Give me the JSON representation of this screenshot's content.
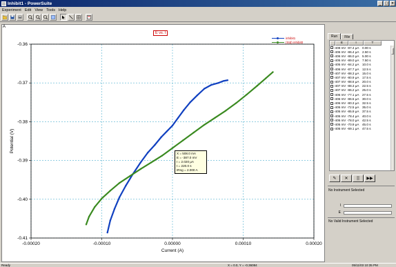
{
  "window": {
    "title": "Inhibit1 - PowerSuite",
    "buttons": [
      "_",
      "□",
      "×"
    ]
  },
  "menu": {
    "items": [
      "Experiment",
      "Edit",
      "View",
      "Tools",
      "Help"
    ]
  },
  "toolbar": {
    "icons": [
      "open-icon",
      "save-icon",
      "print-icon",
      "zoom-in-icon",
      "zoom-out-icon",
      "zoom-box-icon",
      "zoom-fit-icon",
      "cursor-icon",
      "line-icon",
      "grid-icon",
      "properties-icon"
    ]
  },
  "plot": {
    "corner_label": "A",
    "title_badge": "E vs. I",
    "legend": [
      {
        "name": "inhibit1",
        "color": "#1040c0"
      },
      {
        "name": "(Std) inhibit0",
        "color": "#3a8a20"
      }
    ],
    "tooltip": {
      "lines": [
        "X = 508.0 mA",
        "E = -387.0 mV",
        "I = 2.020 μA",
        "t = 220.0 s",
        "IRng = 2.000 A"
      ]
    }
  },
  "chart_data": {
    "type": "line",
    "xlabel": "Current (A)",
    "ylabel": "Potential (V)",
    "xlim": [
      -0.0002,
      0.0002
    ],
    "ylim": [
      -0.41,
      -0.36
    ],
    "xticks": [
      "-0.00020",
      "-0.00010",
      "0.00000",
      "0.00010",
      "0.00020"
    ],
    "yticks": [
      "-0.36",
      "-0.37",
      "-0.38",
      "-0.39",
      "-0.40",
      "-0.41"
    ],
    "xtick_values": [
      -0.0002,
      -0.0001,
      0.0,
      0.0001,
      0.0002
    ],
    "ytick_values": [
      -0.36,
      -0.37,
      -0.38,
      -0.39,
      -0.4,
      -0.41
    ],
    "grid": true,
    "series": [
      {
        "name": "inhibit1",
        "color": "#1040c0",
        "x": [
          -9.2e-05,
          -8.8e-05,
          -8.2e-05,
          -7.5e-05,
          -6.6e-05,
          -5.6e-05,
          -4.5e-05,
          -3.5e-05,
          -2.5e-05,
          -1.6e-05,
          -8e-06,
          0.0,
          8e-06,
          1.6e-05,
          2.5e-05,
          3.5e-05,
          4.5e-05,
          5.5e-05,
          6.5e-05,
          7.2e-05,
          7.8e-05
        ],
        "y": [
          -0.4086,
          -0.4055,
          -0.4025,
          -0.3995,
          -0.3965,
          -0.3935,
          -0.3905,
          -0.388,
          -0.386,
          -0.384,
          -0.3825,
          -0.381,
          -0.379,
          -0.377,
          -0.375,
          -0.3732,
          -0.3715,
          -0.3705,
          -0.37,
          -0.3695,
          -0.3693
        ]
      },
      {
        "name": "(Std) inhibit0",
        "color": "#3a8a20",
        "x": [
          -0.000122,
          -0.000118,
          -0.00011,
          -0.0001,
          -8.8e-05,
          -7.5e-05,
          -6e-05,
          -4.5e-05,
          -3e-05,
          -1.5e-05,
          0.0,
          1.5e-05,
          3e-05,
          4.5e-05,
          6e-05,
          7.5e-05,
          9e-05,
          0.000105,
          0.00012,
          0.000132,
          0.000142
        ],
        "y": [
          -0.4065,
          -0.4045,
          -0.402,
          -0.3998,
          -0.3978,
          -0.3958,
          -0.394,
          -0.3922,
          -0.3905,
          -0.3888,
          -0.3868,
          -0.3848,
          -0.3828,
          -0.3808,
          -0.379,
          -0.3772,
          -0.3752,
          -0.373,
          -0.3707,
          -0.3688,
          -0.3672
        ]
      }
    ]
  },
  "right_panel": {
    "tabs": [
      "Run",
      "File"
    ],
    "columns": [
      "E",
      "I",
      "T"
    ],
    "rows": [
      [
        "-408 mV",
        "-87.4 μA",
        "0.00 s"
      ],
      [
        "-406 mV",
        "-86.4 μA",
        "2.50 s"
      ],
      [
        "-406 mV",
        "-86.0 μA",
        "5.00 s"
      ],
      [
        "-405 mV",
        "-89.0 μA",
        "7.50 s"
      ],
      [
        "-405 mV",
        "-84.2 μA",
        "10.0 s"
      ],
      [
        "-406 mV",
        "-87.7 μA",
        "12.5 s"
      ],
      [
        "-407 mV",
        "-88.3 μA",
        "15.0 s"
      ],
      [
        "-407 mV",
        "-80.9 μA",
        "17.5 s"
      ],
      [
        "-407 mV",
        "-88.6 μA",
        "20.0 s"
      ],
      [
        "-407 mV",
        "-88.3 μA",
        "22.5 s"
      ],
      [
        "-407 mV",
        "-86.2 μA",
        "25.0 s"
      ],
      [
        "-406 mV",
        "-77.1 μA",
        "27.5 s"
      ],
      [
        "-406 mV",
        "-86.5 μA",
        "30.0 s"
      ],
      [
        "-406 mV",
        "-80.3 μA",
        "32.5 s"
      ],
      [
        "-405 mV",
        "-72.5 μA",
        "35.0 s"
      ],
      [
        "-405 mV",
        "-85.9 μA",
        "37.5 s"
      ],
      [
        "-405 mV",
        "-78.4 μA",
        "40.0 s"
      ],
      [
        "-405 mV",
        "-78.0 μA",
        "42.5 s"
      ],
      [
        "-405 mV",
        "-70.9 μA",
        "45.0 s"
      ],
      [
        "-405 mV",
        "-69.1 μA",
        "47.5 s"
      ]
    ],
    "controls": [
      "✎",
      "✕",
      "||",
      "▶▶"
    ],
    "instrument_status": "No Instrument Selected",
    "io_labels": [
      "I",
      "E"
    ],
    "valid_status": "No Valid Instrument Selected"
  },
  "status": {
    "left": "Ready",
    "center": "X = 0.0, Y = -0.36084",
    "right": "05/11/03 10:35 PM"
  }
}
